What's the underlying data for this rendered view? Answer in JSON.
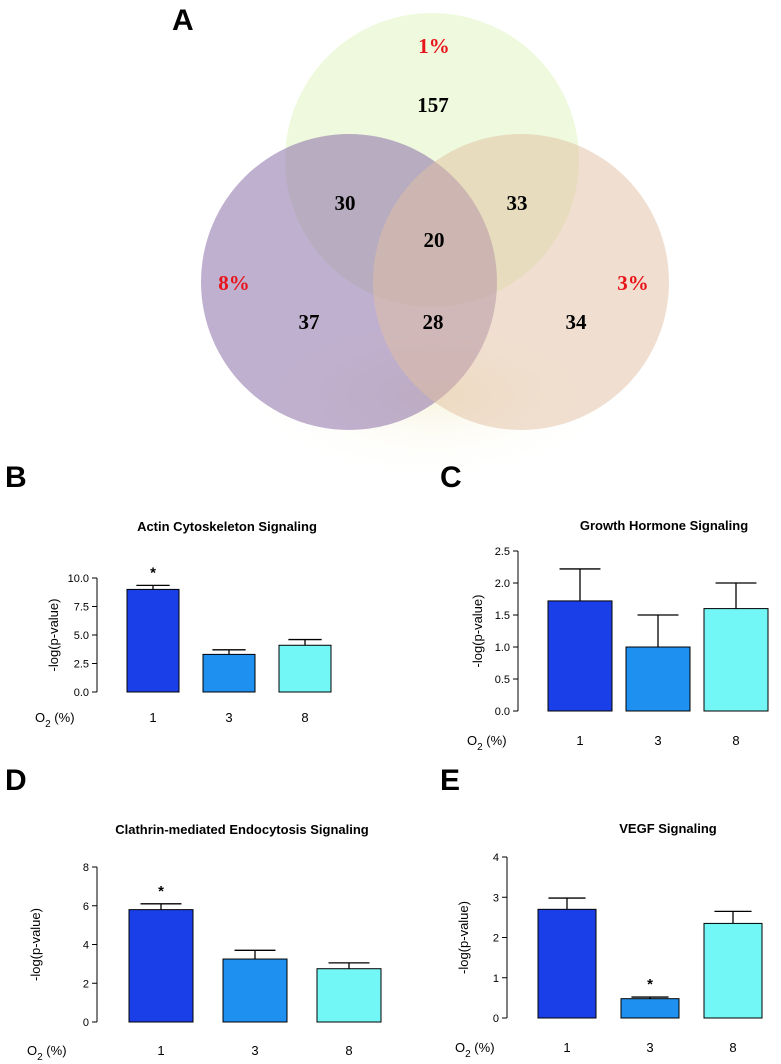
{
  "venn": {
    "panel": "A",
    "sets": [
      {
        "name": "1%",
        "color": "#e2f5c6"
      },
      {
        "name": "8%",
        "color": "#8c6fa8"
      },
      {
        "name": "3%",
        "color": "#e2bfa2"
      }
    ],
    "regions": {
      "only_1": "157",
      "only_8": "37",
      "only_3": "34",
      "1_and_8": "30",
      "1_and_3": "33",
      "8_and_3": "28",
      "all": "20"
    }
  },
  "chart_data": [
    {
      "panel": "B",
      "type": "bar",
      "title": "Actin Cytoskeleton Signaling",
      "ylabel": "-log(p-value)",
      "xlabel": "O2 (%)",
      "categories": [
        "1",
        "3",
        "8"
      ],
      "values": [
        9.0,
        3.3,
        4.1
      ],
      "errors": [
        0.35,
        0.4,
        0.5
      ],
      "significant": [
        true,
        false,
        false
      ],
      "ylim": [
        0,
        10
      ],
      "yticks": [
        "0.0",
        "2.5",
        "5.0",
        "7.5",
        "10.0"
      ],
      "colors": [
        "#1a3fe8",
        "#1e90f0",
        "#73f6f6"
      ]
    },
    {
      "panel": "C",
      "type": "bar",
      "title": "Growth Hormone Signaling",
      "ylabel": "-log(p-value)",
      "xlabel": "O2 (%)",
      "categories": [
        "1",
        "3",
        "8"
      ],
      "values": [
        1.72,
        1.0,
        1.6
      ],
      "errors": [
        0.5,
        0.5,
        0.4
      ],
      "significant": [
        false,
        false,
        false
      ],
      "ylim": [
        0,
        2.5
      ],
      "yticks": [
        "0.0",
        "0.5",
        "1.0",
        "1.5",
        "2.0",
        "2.5"
      ],
      "colors": [
        "#1a3fe8",
        "#1e90f0",
        "#73f6f6"
      ]
    },
    {
      "panel": "D",
      "type": "bar",
      "title": "Clathrin-mediated Endocytosis Signaling",
      "ylabel": "-log(p-value)",
      "xlabel": "O2 (%)",
      "categories": [
        "1",
        "3",
        "8"
      ],
      "values": [
        5.8,
        3.25,
        2.75
      ],
      "errors": [
        0.3,
        0.45,
        0.3
      ],
      "significant": [
        true,
        false,
        false
      ],
      "ylim": [
        0,
        8
      ],
      "yticks": [
        "0",
        "2",
        "4",
        "6",
        "8"
      ],
      "colors": [
        "#1a3fe8",
        "#1e90f0",
        "#73f6f6"
      ]
    },
    {
      "panel": "E",
      "type": "bar",
      "title": "VEGF Signaling",
      "ylabel": "-log(p-value)",
      "xlabel": "O2 (%)",
      "categories": [
        "1",
        "3",
        "8"
      ],
      "values": [
        2.7,
        0.48,
        2.35
      ],
      "errors": [
        0.28,
        0.04,
        0.3
      ],
      "significant": [
        false,
        true,
        false
      ],
      "ylim": [
        0,
        4
      ],
      "yticks": [
        "0",
        "1",
        "2",
        "3",
        "4"
      ],
      "colors": [
        "#1a3fe8",
        "#1e90f0",
        "#73f6f6"
      ]
    }
  ]
}
